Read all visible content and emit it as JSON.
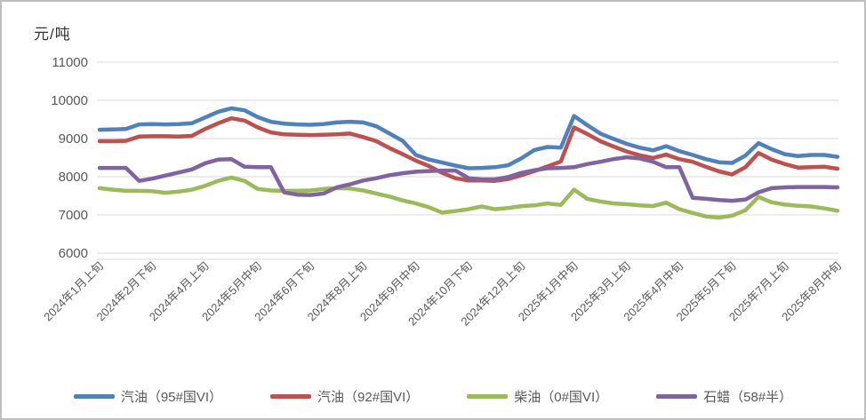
{
  "chart_data": {
    "type": "line",
    "unit_label": "元/吨",
    "ylim": [
      6000,
      11000
    ],
    "y_ticks": [
      11000,
      10000,
      9000,
      8000,
      7000,
      6000
    ],
    "grid": true,
    "legend_position": "bottom",
    "x_tick_labels": [
      "2024年1月上旬",
      "2024年2月下旬",
      "2024年4月上旬",
      "2024年5月中旬",
      "2024年6月下旬",
      "2024年8月上旬",
      "2024年9月中旬",
      "2024年10月下旬",
      "2024年12月上旬",
      "2025年1月中旬",
      "2025年3月上旬",
      "2025年4月中旬",
      "2025年5月下旬",
      "2025年7月上旬",
      "2025年8月中旬"
    ],
    "x_label_interval": 4,
    "n_points": 57,
    "series": [
      {
        "name": "汽油（95#国VI）",
        "color": "#4f81bd",
        "values": [
          9230,
          9240,
          9250,
          9370,
          9380,
          9370,
          9380,
          9400,
          9550,
          9700,
          9790,
          9740,
          9560,
          9440,
          9390,
          9370,
          9360,
          9380,
          9420,
          9440,
          9420,
          9320,
          9130,
          8940,
          8570,
          8450,
          8370,
          8290,
          8220,
          8230,
          8250,
          8300,
          8480,
          8700,
          8780,
          8760,
          9590,
          9350,
          9130,
          8990,
          8860,
          8760,
          8690,
          8800,
          8670,
          8570,
          8460,
          8380,
          8360,
          8550,
          8880,
          8720,
          8590,
          8540,
          8570,
          8570,
          8520
        ]
      },
      {
        "name": "汽油（92#国VI）",
        "color": "#c0504d",
        "values": [
          8930,
          8930,
          8940,
          9050,
          9060,
          9060,
          9050,
          9070,
          9250,
          9400,
          9530,
          9470,
          9290,
          9160,
          9110,
          9100,
          9090,
          9100,
          9110,
          9130,
          9040,
          8930,
          8750,
          8590,
          8420,
          8280,
          8100,
          7960,
          7900,
          7900,
          7890,
          7940,
          8040,
          8150,
          8270,
          8400,
          9290,
          9120,
          8930,
          8790,
          8660,
          8560,
          8490,
          8580,
          8460,
          8390,
          8260,
          8140,
          8060,
          8250,
          8620,
          8450,
          8330,
          8240,
          8250,
          8260,
          8210
        ]
      },
      {
        "name": "柴油（0#国VI）",
        "color": "#9bbb59",
        "values": [
          7700,
          7660,
          7630,
          7630,
          7620,
          7580,
          7610,
          7660,
          7760,
          7890,
          7980,
          7890,
          7680,
          7640,
          7630,
          7630,
          7640,
          7680,
          7700,
          7690,
          7640,
          7560,
          7480,
          7380,
          7300,
          7200,
          7060,
          7100,
          7150,
          7220,
          7150,
          7180,
          7230,
          7250,
          7300,
          7260,
          7660,
          7420,
          7350,
          7300,
          7280,
          7250,
          7230,
          7320,
          7150,
          7050,
          6960,
          6930,
          6980,
          7120,
          7470,
          7330,
          7270,
          7240,
          7220,
          7170,
          7110
        ]
      },
      {
        "name": "石蜡（58#半）",
        "color": "#8064a2",
        "values": [
          8230,
          8230,
          8230,
          7890,
          7950,
          8030,
          8110,
          8190,
          8350,
          8450,
          8460,
          8260,
          8250,
          8250,
          7590,
          7530,
          7520,
          7560,
          7720,
          7800,
          7900,
          7960,
          8040,
          8090,
          8130,
          8150,
          8160,
          8160,
          7960,
          7930,
          7930,
          7990,
          8100,
          8170,
          8220,
          8230,
          8250,
          8330,
          8390,
          8460,
          8510,
          8480,
          8390,
          8250,
          8250,
          7450,
          7420,
          7390,
          7370,
          7400,
          7590,
          7700,
          7720,
          7730,
          7730,
          7730,
          7720
        ]
      }
    ]
  }
}
